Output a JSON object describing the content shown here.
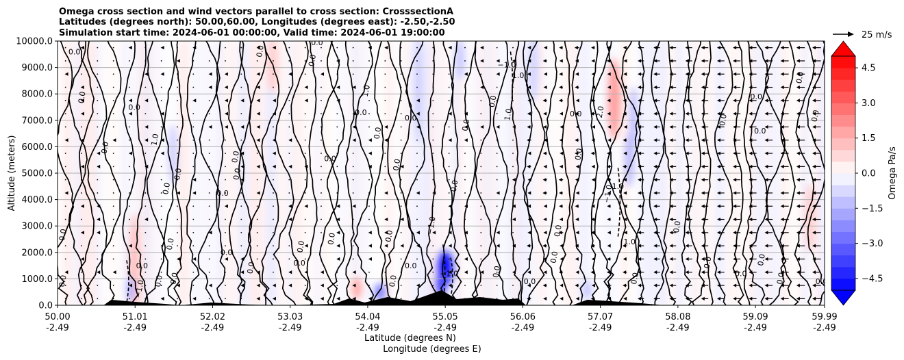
{
  "chart_data": {
    "type": "heatmap",
    "title_lines": [
      "Omega cross section and wind vectors parallel to cross section: CrosssectionA",
      "Latitudes (degrees north): 50.00,60.00, Longitudes (degrees east): -2.50,-2.50",
      "Simulation start time: 2024-06-01 00:00:00, Valid time: 2024-06-01 19:00:00"
    ],
    "ylabel": "Altitude (meters)",
    "xlabel_lines": [
      "Latitude (degrees N)",
      "Longitude (degrees E)"
    ],
    "ylim": [
      0,
      10000
    ],
    "xlim": [
      50.0,
      59.99
    ],
    "yticks": [
      0,
      1000,
      2000,
      3000,
      4000,
      5000,
      6000,
      7000,
      8000,
      9000,
      10000
    ],
    "ytick_labels": [
      "0.0",
      "1000.0",
      "2000.0",
      "3000.0",
      "4000.0",
      "5000.0",
      "6000.0",
      "7000.0",
      "8000.0",
      "9000.0",
      "10000.0"
    ],
    "xticks": [
      50.0,
      51.01,
      52.02,
      53.03,
      54.04,
      55.05,
      56.06,
      57.07,
      58.08,
      59.09,
      59.99
    ],
    "xtick_lat_labels": [
      "50.00",
      "51.01",
      "52.02",
      "53.03",
      "54.04",
      "55.05",
      "56.06",
      "57.07",
      "58.08",
      "59.09",
      "59.99"
    ],
    "xtick_lon_labels": [
      "-2.49",
      "-2.49",
      "-2.49",
      "-2.49",
      "-2.49",
      "-2.49",
      "-2.49",
      "-2.49",
      "-2.49",
      "-2.49",
      "-2.49"
    ],
    "grid": "horizontal",
    "colorbar": {
      "label": "Omega Pa/s",
      "range": [
        -5,
        5
      ],
      "extend": "both",
      "ticks": [
        4.5,
        3.0,
        1.5,
        0.0,
        -1.5,
        -3.0,
        -4.5
      ],
      "tick_labels": [
        "4.5",
        "3.0",
        "1.5",
        "0.0",
        "−1.5",
        "−3.0",
        "−4.5"
      ],
      "levels": [
        -5.0,
        -4.5,
        -4.0,
        -3.5,
        -3.0,
        -2.5,
        -2.0,
        -1.5,
        -1.0,
        -0.5,
        0.0,
        0.5,
        1.0,
        1.5,
        2.0,
        2.5,
        3.0,
        3.5,
        4.0,
        4.5,
        5.0
      ],
      "neg_color": "#0000ff",
      "pos_color": "#ff0000"
    },
    "quiver_key": "25 m/s",
    "contour_labels": [
      {
        "x": 50.22,
        "y": 9500,
        "t": "0.0"
      },
      {
        "x": 50.35,
        "y": 7850,
        "t": "0.0"
      },
      {
        "x": 50.65,
        "y": 5950,
        "t": "0.0"
      },
      {
        "x": 51.0,
        "y": 7400,
        "t": "0.0"
      },
      {
        "x": 51.3,
        "y": 6250,
        "t": "1.0"
      },
      {
        "x": 51.6,
        "y": 4950,
        "t": "0.0"
      },
      {
        "x": 52.15,
        "y": 4150,
        "t": "0.0"
      },
      {
        "x": 51.45,
        "y": 4400,
        "t": "0.0"
      },
      {
        "x": 52.67,
        "y": 9600,
        "t": "0.0"
      },
      {
        "x": 53.38,
        "y": 9850,
        "t": "0.0"
      },
      {
        "x": 52.35,
        "y": 5600,
        "t": "0.0"
      },
      {
        "x": 52.37,
        "y": 4950,
        "t": "0.0"
      },
      {
        "x": 53.55,
        "y": 5450,
        "t": "0.0"
      },
      {
        "x": 53.35,
        "y": 9250,
        "t": "0.0"
      },
      {
        "x": 54.05,
        "y": 8100,
        "t": "1.0"
      },
      {
        "x": 53.95,
        "y": 7200,
        "t": "0.0"
      },
      {
        "x": 54.2,
        "y": 6500,
        "t": "0.0"
      },
      {
        "x": 54.45,
        "y": 5300,
        "t": "0.0"
      },
      {
        "x": 54.6,
        "y": 7000,
        "t": "0.0"
      },
      {
        "x": 55.2,
        "y": 4500,
        "t": "0.0"
      },
      {
        "x": 55.7,
        "y": 7700,
        "t": "0.0"
      },
      {
        "x": 56.0,
        "y": 8600,
        "t": "1.0"
      },
      {
        "x": 55.9,
        "y": 7200,
        "t": "1.0"
      },
      {
        "x": 55.35,
        "y": 6800,
        "t": "0.0"
      },
      {
        "x": 56.75,
        "y": 7150,
        "t": "0.0"
      },
      {
        "x": 56.82,
        "y": 5700,
        "t": "0.0"
      },
      {
        "x": 57.1,
        "y": 7300,
        "t": "2.0"
      },
      {
        "x": 57.3,
        "y": 4400,
        "t": "1.0"
      },
      {
        "x": 58.1,
        "y": 2950,
        "t": "0.0"
      },
      {
        "x": 58.7,
        "y": 7000,
        "t": "0.0"
      },
      {
        "x": 59.1,
        "y": 7800,
        "t": "0.0"
      },
      {
        "x": 59.7,
        "y": 8600,
        "t": "0.0"
      },
      {
        "x": 59.9,
        "y": 7150,
        "t": "0.0"
      },
      {
        "x": 59.15,
        "y": 6500,
        "t": "0.0"
      },
      {
        "x": 50.1,
        "y": 2650,
        "t": "0.0"
      },
      {
        "x": 50.1,
        "y": 900,
        "t": "0.0"
      },
      {
        "x": 51.1,
        "y": 1400,
        "t": "0.0"
      },
      {
        "x": 51.55,
        "y": 1000,
        "t": "0.0"
      },
      {
        "x": 51.5,
        "y": 2300,
        "t": "0.0"
      },
      {
        "x": 52.2,
        "y": 1900,
        "t": "0.0"
      },
      {
        "x": 52.55,
        "y": 1400,
        "t": "0.0"
      },
      {
        "x": 53.2,
        "y": 2200,
        "t": "0.0"
      },
      {
        "x": 53.15,
        "y": 1500,
        "t": "0.0"
      },
      {
        "x": 53.6,
        "y": 2500,
        "t": "0.0"
      },
      {
        "x": 54.35,
        "y": 2600,
        "t": "0.0"
      },
      {
        "x": 54.6,
        "y": 1400,
        "t": "0.0"
      },
      {
        "x": 54.4,
        "y": 900,
        "t": "0.0"
      },
      {
        "x": 55.75,
        "y": 1250,
        "t": "0.0"
      },
      {
        "x": 56.15,
        "y": 800,
        "t": "0.0"
      },
      {
        "x": 56.55,
        "y": 2800,
        "t": "0.0"
      },
      {
        "x": 56.5,
        "y": 1800,
        "t": "0.0"
      },
      {
        "x": 57.45,
        "y": 2300,
        "t": "1.0"
      },
      {
        "x": 57.55,
        "y": 1000,
        "t": "0.0"
      },
      {
        "x": 58.5,
        "y": 1600,
        "t": "0.0"
      },
      {
        "x": 58.9,
        "y": 1100,
        "t": "0.0"
      },
      {
        "x": 59.2,
        "y": 1700,
        "t": "0.0"
      },
      {
        "x": 59.45,
        "y": 1000,
        "t": "0.0"
      },
      {
        "x": 59.95,
        "y": 800,
        "t": "0.0"
      },
      {
        "x": 51.1,
        "y": 600,
        "t": "−1.0"
      },
      {
        "x": 51.35,
        "y": 900,
        "t": "0.0"
      },
      {
        "x": 55.85,
        "y": 9000,
        "t": "−1.0"
      },
      {
        "x": 57.2,
        "y": 4200,
        "t": "−1.0"
      },
      {
        "x": 54.9,
        "y": 3000,
        "t": "−1.0"
      },
      {
        "x": 55.1,
        "y": 1100,
        "t": "−1.0"
      }
    ]
  }
}
